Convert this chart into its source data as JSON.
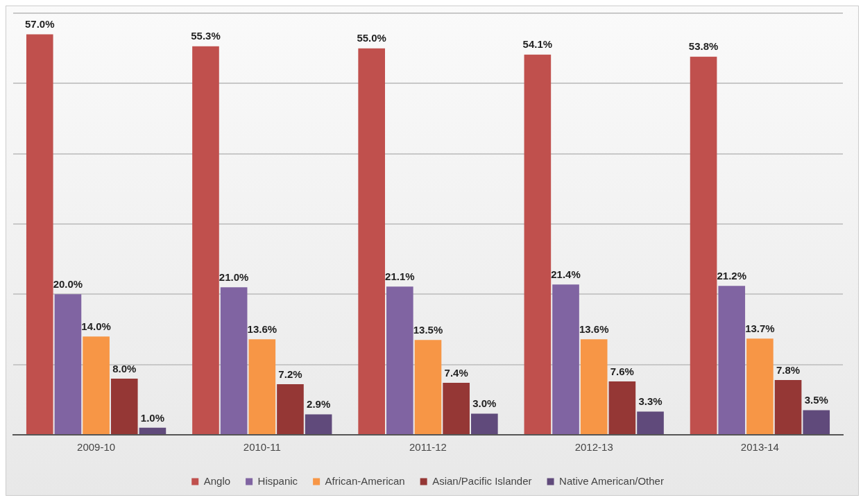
{
  "chart_data": {
    "type": "bar",
    "categories": [
      "2009-10",
      "2010-11",
      "2011-12",
      "2012-13",
      "2013-14"
    ],
    "series": [
      {
        "name": "Anglo",
        "color": "#c0504d",
        "values": [
          57.0,
          55.3,
          55.0,
          54.1,
          53.8
        ],
        "value_labels": [
          "57.0%",
          "55.3%",
          "55.0%",
          "54.1%",
          "53.8%"
        ]
      },
      {
        "name": "Hispanic",
        "color": "#8064a2",
        "values": [
          20.0,
          21.0,
          21.1,
          21.4,
          21.2
        ],
        "value_labels": [
          "20.0%",
          "21.0%",
          "21.1%",
          "21.4%",
          "21.2%"
        ]
      },
      {
        "name": "African-American",
        "color": "#f79646",
        "values": [
          14.0,
          13.6,
          13.5,
          13.6,
          13.7
        ],
        "value_labels": [
          "14.0%",
          "13.6%",
          "13.5%",
          "13.6%",
          "13.7%"
        ]
      },
      {
        "name": "Asian/Pacific Islander",
        "color": "#953735",
        "values": [
          8.0,
          7.2,
          7.4,
          7.6,
          7.8
        ],
        "value_labels": [
          "8.0%",
          "7.2%",
          "7.4%",
          "7.6%",
          "7.8%"
        ]
      },
      {
        "name": "Native American/Other",
        "color": "#604a7b",
        "values": [
          1.0,
          2.9,
          3.0,
          3.3,
          3.5
        ],
        "value_labels": [
          "1.0%",
          "2.9%",
          "3.0%",
          "3.3%",
          "3.5%"
        ]
      }
    ],
    "ylim": [
      0,
      60
    ],
    "yticks": [
      {
        "value": 0,
        "label": null
      },
      {
        "value": 10,
        "label": null
      },
      {
        "value": 20,
        "label": null
      },
      {
        "value": 30,
        "label": null
      },
      {
        "value": 40,
        "label": null
      },
      {
        "value": 50,
        "label": null
      },
      {
        "value": 60,
        "label": null
      }
    ],
    "grid": "y",
    "tick_labels": "x",
    "legend": "bottom"
  }
}
